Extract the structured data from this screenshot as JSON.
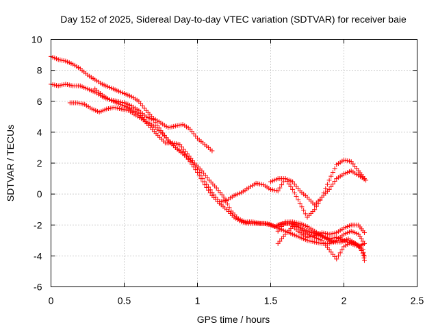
{
  "chart_data": {
    "type": "scatter",
    "title": "Day 152 of 2025, Sidereal Day-to-day VTEC variation (SDTVAR) for receiver baie",
    "xlabel": "GPS time / hours",
    "ylabel": "SDTVAR / TECUs",
    "xlim": [
      0,
      2.5
    ],
    "ylim": [
      -6,
      10
    ],
    "x_ticks": [
      0,
      0.5,
      1,
      1.5,
      2,
      2.5
    ],
    "x_tick_labels": [
      "0",
      "0.5",
      "1",
      "1.5",
      "2",
      "2.5"
    ],
    "y_ticks": [
      -6,
      -4,
      -2,
      0,
      2,
      4,
      6,
      8,
      10
    ],
    "y_tick_labels": [
      "-6",
      "-4",
      "-2",
      "0",
      "2",
      "4",
      "6",
      "8",
      "10"
    ],
    "grid": true,
    "marker": "+",
    "color": "#ff0000",
    "series": [
      {
        "name": "trace-1",
        "points": [
          [
            0.0,
            8.9
          ],
          [
            0.05,
            8.7
          ],
          [
            0.1,
            8.6
          ],
          [
            0.15,
            8.4
          ],
          [
            0.2,
            8.1
          ],
          [
            0.25,
            7.7
          ],
          [
            0.3,
            7.4
          ],
          [
            0.35,
            7.1
          ],
          [
            0.4,
            6.9
          ],
          [
            0.45,
            6.7
          ],
          [
            0.5,
            6.5
          ],
          [
            0.55,
            6.3
          ],
          [
            0.6,
            6.0
          ],
          [
            0.65,
            5.4
          ],
          [
            0.7,
            4.9
          ],
          [
            0.75,
            4.6
          ],
          [
            0.8,
            4.3
          ],
          [
            0.85,
            4.4
          ],
          [
            0.9,
            4.5
          ],
          [
            0.95,
            4.2
          ],
          [
            1.0,
            3.6
          ],
          [
            1.05,
            3.2
          ],
          [
            1.1,
            2.8
          ]
        ]
      },
      {
        "name": "trace-2",
        "points": [
          [
            0.0,
            7.1
          ],
          [
            0.05,
            7.0
          ],
          [
            0.1,
            7.1
          ],
          [
            0.15,
            7.0
          ],
          [
            0.2,
            7.0
          ],
          [
            0.25,
            6.8
          ],
          [
            0.3,
            6.6
          ],
          [
            0.35,
            6.3
          ],
          [
            0.4,
            6.1
          ],
          [
            0.45,
            5.9
          ],
          [
            0.5,
            5.7
          ],
          [
            0.55,
            5.5
          ],
          [
            0.6,
            5.2
          ],
          [
            0.65,
            4.7
          ],
          [
            0.7,
            4.4
          ],
          [
            0.75,
            4.0
          ],
          [
            0.8,
            3.5
          ],
          [
            0.85,
            3.0
          ],
          [
            0.9,
            2.6
          ],
          [
            0.95,
            2.2
          ],
          [
            1.0,
            1.6
          ],
          [
            1.05,
            0.8
          ],
          [
            1.1,
            0.1
          ],
          [
            1.15,
            -0.5
          ],
          [
            1.2,
            -0.4
          ],
          [
            1.25,
            -0.1
          ],
          [
            1.3,
            0.1
          ],
          [
            1.35,
            0.4
          ],
          [
            1.4,
            0.7
          ],
          [
            1.45,
            0.6
          ],
          [
            1.5,
            0.3
          ],
          [
            1.55,
            0.2
          ],
          [
            1.6,
            1.0
          ],
          [
            1.65,
            0.8
          ],
          [
            1.7,
            0.2
          ],
          [
            1.75,
            -0.2
          ],
          [
            1.8,
            -0.7
          ],
          [
            1.85,
            -0.2
          ],
          [
            1.9,
            0.3
          ],
          [
            1.95,
            1.0
          ],
          [
            2.0,
            1.3
          ],
          [
            2.05,
            1.5
          ],
          [
            2.1,
            1.2
          ],
          [
            2.15,
            0.9
          ]
        ]
      },
      {
        "name": "trace-3",
        "points": [
          [
            0.13,
            5.9
          ],
          [
            0.18,
            5.9
          ],
          [
            0.23,
            5.8
          ],
          [
            0.28,
            5.5
          ],
          [
            0.33,
            5.3
          ],
          [
            0.38,
            5.5
          ],
          [
            0.43,
            5.6
          ],
          [
            0.48,
            5.5
          ],
          [
            0.53,
            5.4
          ],
          [
            0.58,
            5.1
          ],
          [
            0.63,
            4.8
          ],
          [
            0.68,
            4.3
          ],
          [
            0.73,
            3.8
          ],
          [
            0.78,
            3.3
          ],
          [
            0.83,
            3.3
          ],
          [
            0.88,
            3.2
          ],
          [
            0.93,
            2.6
          ],
          [
            0.98,
            2.0
          ],
          [
            1.03,
            1.5
          ],
          [
            1.08,
            0.9
          ],
          [
            1.13,
            0.4
          ],
          [
            1.18,
            -0.2
          ],
          [
            1.23,
            -1.1
          ],
          [
            1.28,
            -1.6
          ],
          [
            1.33,
            -1.8
          ],
          [
            1.38,
            -1.8
          ],
          [
            1.43,
            -1.9
          ],
          [
            1.48,
            -1.9
          ],
          [
            1.53,
            -2.1
          ],
          [
            1.58,
            -1.9
          ],
          [
            1.63,
            -1.9
          ],
          [
            1.68,
            -2.0
          ],
          [
            1.73,
            -2.3
          ],
          [
            1.78,
            -2.5
          ],
          [
            1.83,
            -2.6
          ],
          [
            1.88,
            -2.9
          ],
          [
            1.93,
            -3.1
          ],
          [
            1.98,
            -3.1
          ],
          [
            2.03,
            -2.9
          ],
          [
            2.08,
            -3.2
          ],
          [
            2.13,
            -3.6
          ],
          [
            2.14,
            -4.3
          ]
        ]
      },
      {
        "name": "trace-4",
        "points": [
          [
            0.3,
            6.8
          ],
          [
            0.35,
            6.4
          ],
          [
            0.4,
            6.1
          ],
          [
            0.45,
            6.0
          ],
          [
            0.5,
            5.9
          ],
          [
            0.55,
            5.7
          ],
          [
            0.6,
            5.4
          ],
          [
            0.65,
            5.0
          ],
          [
            0.7,
            4.8
          ],
          [
            0.75,
            4.1
          ],
          [
            0.8,
            3.5
          ],
          [
            0.85,
            3.0
          ],
          [
            0.9,
            2.7
          ],
          [
            0.95,
            2.1
          ],
          [
            1.0,
            1.4
          ],
          [
            1.05,
            0.6
          ],
          [
            1.1,
            -0.1
          ],
          [
            1.15,
            -0.6
          ],
          [
            1.2,
            -1.0
          ],
          [
            1.25,
            -1.5
          ],
          [
            1.3,
            -1.8
          ],
          [
            1.35,
            -1.9
          ],
          [
            1.4,
            -1.9
          ],
          [
            1.45,
            -1.9
          ],
          [
            1.5,
            -2.0
          ],
          [
            1.55,
            -2.2
          ],
          [
            1.6,
            -2.4
          ],
          [
            1.65,
            -2.6
          ],
          [
            1.7,
            -2.8
          ],
          [
            1.75,
            -3.0
          ],
          [
            1.8,
            -3.1
          ],
          [
            1.85,
            -3.2
          ],
          [
            1.9,
            -3.2
          ],
          [
            1.95,
            -3.0
          ],
          [
            2.0,
            -2.6
          ],
          [
            2.05,
            -2.4
          ],
          [
            2.1,
            -2.6
          ],
          [
            2.14,
            -3.2
          ]
        ]
      },
      {
        "name": "trace-5",
        "points": [
          [
            1.55,
            -2.4
          ],
          [
            1.6,
            -1.8
          ],
          [
            1.65,
            -1.8
          ],
          [
            1.7,
            -1.9
          ],
          [
            1.75,
            -2.1
          ],
          [
            1.8,
            -2.4
          ],
          [
            1.85,
            -2.7
          ],
          [
            1.9,
            -2.9
          ],
          [
            1.95,
            -2.8
          ],
          [
            2.0,
            -3.0
          ],
          [
            2.05,
            -3.2
          ],
          [
            2.1,
            -3.4
          ],
          [
            2.14,
            -3.2
          ]
        ]
      },
      {
        "name": "trace-6",
        "points": [
          [
            1.55,
            -3.2
          ],
          [
            1.6,
            -2.6
          ],
          [
            1.65,
            -2.1
          ],
          [
            1.7,
            -2.5
          ],
          [
            1.75,
            -2.8
          ],
          [
            1.8,
            -2.7
          ],
          [
            1.85,
            -2.5
          ],
          [
            1.9,
            -2.6
          ],
          [
            1.95,
            -2.5
          ],
          [
            2.0,
            -2.2
          ],
          [
            2.05,
            -2.0
          ],
          [
            2.1,
            -2.0
          ],
          [
            2.14,
            -2.5
          ]
        ]
      },
      {
        "name": "trace-7",
        "points": [
          [
            1.55,
            -2.0
          ],
          [
            1.6,
            -1.9
          ],
          [
            1.65,
            -1.9
          ],
          [
            1.7,
            -2.3
          ],
          [
            1.75,
            -2.6
          ],
          [
            1.8,
            -2.8
          ],
          [
            1.85,
            -3.0
          ],
          [
            1.9,
            -3.6
          ],
          [
            1.95,
            -4.2
          ],
          [
            2.0,
            -3.4
          ],
          [
            2.05,
            -3.1
          ],
          [
            2.1,
            -3.3
          ],
          [
            2.14,
            -4.0
          ]
        ]
      },
      {
        "name": "trace-8",
        "points": [
          [
            1.5,
            0.8
          ],
          [
            1.55,
            1.0
          ],
          [
            1.6,
            1.0
          ],
          [
            1.65,
            0.3
          ],
          [
            1.7,
            -0.6
          ],
          [
            1.75,
            -1.5
          ],
          [
            1.8,
            -1.0
          ],
          [
            1.85,
            -0.2
          ],
          [
            1.9,
            0.9
          ],
          [
            1.95,
            1.9
          ],
          [
            2.0,
            2.2
          ],
          [
            2.05,
            2.1
          ],
          [
            2.1,
            1.5
          ],
          [
            2.14,
            1.0
          ]
        ]
      }
    ]
  }
}
